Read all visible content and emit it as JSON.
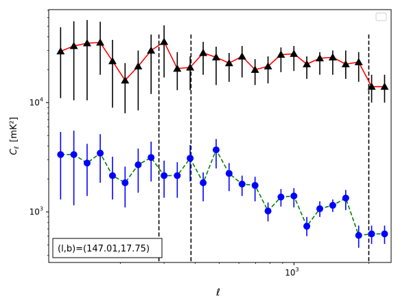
{
  "chart_data": {
    "type": "line",
    "xscale": "log",
    "yscale": "log",
    "xlim": [
      103,
      2460
    ],
    "ylim": [
      345,
      71000
    ],
    "xlabel": "ℓ",
    "ylabel_main": "C",
    "ylabel_sub": "ℓ",
    "ylabel_unit": "[mK²]",
    "x_tick_labels": [
      {
        "label": "10",
        "exp": "3",
        "value": 1000
      }
    ],
    "y_tick_labels": [
      {
        "label": "10",
        "exp": "3",
        "value": 1000
      },
      {
        "label": "10",
        "exp": "4",
        "value": 10000
      }
    ],
    "legend": {
      "position": "top-right",
      "entries": []
    },
    "annotation": "(l,b)=(147.01,17.75)",
    "vlines": [
      286,
      385,
      2000
    ],
    "series": [
      {
        "color": "#ff0000",
        "marker": "triangle",
        "marker_color": "#000000",
        "linestyle": "solid",
        "x": [
          115,
          130,
          147,
          166,
          186,
          209,
          236,
          266,
          300,
          339,
          382,
          431,
          486,
          548,
          618,
          697,
          786,
          886,
          999,
          1126,
          1270,
          1432,
          1615,
          1821,
          2053,
          2315
        ],
        "y": [
          29500,
          33000,
          35000,
          35500,
          24000,
          16000,
          21500,
          30000,
          36000,
          20500,
          21000,
          28500,
          26000,
          23000,
          26500,
          20000,
          21500,
          27500,
          28000,
          22500,
          25500,
          26000,
          22500,
          23500,
          14000,
          14000
        ],
        "err_low": [
          18500,
          22500,
          24500,
          17500,
          15000,
          8000,
          13000,
          18000,
          19000,
          7500,
          8000,
          10500,
          11500,
          7500,
          9500,
          5500,
          6500,
          8500,
          8500,
          6000,
          7500,
          8000,
          6000,
          8000,
          4000,
          4000
        ],
        "err_high": [
          19500,
          22500,
          22000,
          19500,
          13500,
          7000,
          8500,
          12000,
          15000,
          8500,
          5500,
          7500,
          6500,
          5500,
          6500,
          5000,
          5000,
          4500,
          5000,
          4000,
          3500,
          4000,
          7500,
          5500,
          4000,
          4000
        ]
      },
      {
        "color": "#008000",
        "marker": "circle",
        "marker_color": "#0000ff",
        "linestyle": "dashed",
        "x": [
          115,
          130,
          147,
          166,
          186,
          209,
          236,
          266,
          300,
          339,
          382,
          431,
          486,
          548,
          618,
          697,
          786,
          886,
          999,
          1126,
          1270,
          1432,
          1615,
          1821,
          2053,
          2315
        ],
        "y": [
          3350,
          3350,
          2800,
          3450,
          2150,
          1850,
          2700,
          3150,
          2150,
          2150,
          3100,
          1850,
          3700,
          2250,
          1800,
          1750,
          1020,
          1370,
          1400,
          740,
          1070,
          1150,
          1340,
          610,
          630,
          630
        ],
        "err_low": [
          2050,
          2200,
          1400,
          1600,
          850,
          750,
          1200,
          1250,
          800,
          800,
          1200,
          600,
          1200,
          700,
          400,
          500,
          200,
          250,
          300,
          140,
          170,
          150,
          300,
          140,
          120,
          120
        ],
        "err_high": [
          2050,
          2200,
          1400,
          1700,
          1050,
          750,
          1100,
          1250,
          800,
          700,
          1000,
          450,
          950,
          550,
          350,
          350,
          200,
          250,
          250,
          160,
          180,
          150,
          250,
          140,
          120,
          120
        ]
      }
    ]
  }
}
